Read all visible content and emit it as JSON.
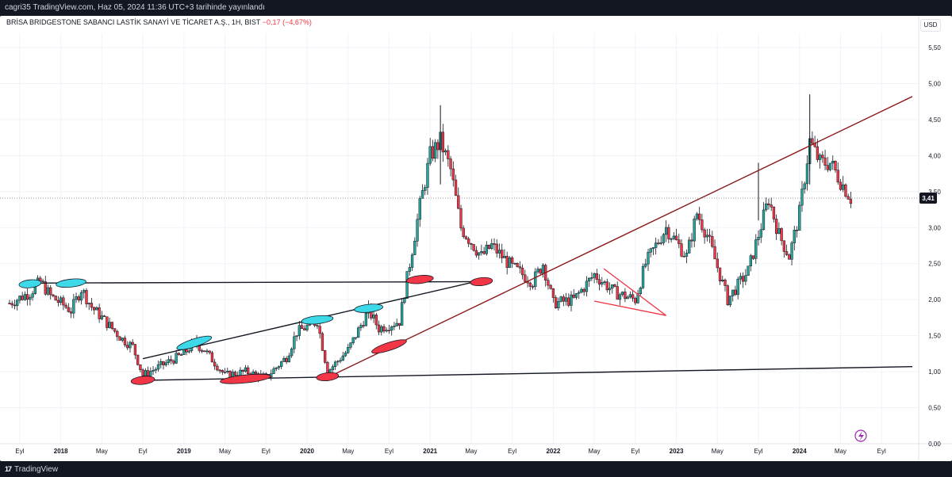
{
  "header": {
    "published": "cagri35 TradingView.com, Haz 05, 2024 11:36 UTC+3 tarihinde yayınlandı"
  },
  "legend": {
    "symbol": "BRİSA BRIDGESTONE SABANCI LASTİK SANAYİ VE TİCARET A.Ş., 1H, BIST",
    "change": "−0,17 (−4,67%)"
  },
  "currency": "USD",
  "footer": {
    "brand": "TradingView",
    "brand_mark": "17"
  },
  "chart_data": {
    "type": "candlestick",
    "title": "",
    "last_price": "3,41",
    "y_ticks": [
      {
        "v": 0.0,
        "label": "0,00"
      },
      {
        "v": 0.5,
        "label": "0,50"
      },
      {
        "v": 1.0,
        "label": "1,00"
      },
      {
        "v": 1.5,
        "label": "1,50"
      },
      {
        "v": 2.0,
        "label": "2,00"
      },
      {
        "v": 2.5,
        "label": "2,50"
      },
      {
        "v": 3.0,
        "label": "3,00"
      },
      {
        "v": 3.5,
        "label": "3,50"
      },
      {
        "v": 4.0,
        "label": "4,00"
      },
      {
        "v": 4.5,
        "label": "4,50"
      },
      {
        "v": 5.0,
        "label": "5,00"
      },
      {
        "v": 5.5,
        "label": "5,50"
      }
    ],
    "ylim": [
      0,
      5.5
    ],
    "x_ticks": [
      {
        "t": "2017-09",
        "label": "Eyl"
      },
      {
        "t": "2018-01",
        "label": "2018"
      },
      {
        "t": "2018-05",
        "label": "May"
      },
      {
        "t": "2018-09",
        "label": "Eyl"
      },
      {
        "t": "2019-01",
        "label": "2019"
      },
      {
        "t": "2019-05",
        "label": "May"
      },
      {
        "t": "2019-09",
        "label": "Eyl"
      },
      {
        "t": "2020-01",
        "label": "2020"
      },
      {
        "t": "2020-05",
        "label": "May"
      },
      {
        "t": "2020-09",
        "label": "Eyl"
      },
      {
        "t": "2021-01",
        "label": "2021"
      },
      {
        "t": "2021-05",
        "label": "May"
      },
      {
        "t": "2021-09",
        "label": "Eyl"
      },
      {
        "t": "2022-01",
        "label": "2022"
      },
      {
        "t": "2022-05",
        "label": "May"
      },
      {
        "t": "2022-09",
        "label": "Eyl"
      },
      {
        "t": "2023-01",
        "label": "2023"
      },
      {
        "t": "2023-05",
        "label": "May"
      },
      {
        "t": "2023-09",
        "label": "Eyl"
      },
      {
        "t": "2024-01",
        "label": "2024"
      },
      {
        "t": "2024-05",
        "label": "May"
      },
      {
        "t": "2024-09",
        "label": "Eyl"
      }
    ],
    "xlim": [
      "2017-08",
      "2024-12"
    ],
    "price_path": [
      [
        "2017-08",
        1.95
      ],
      [
        "2017-10",
        2.1
      ],
      [
        "2017-11",
        2.25
      ],
      [
        "2017-12",
        2.05
      ],
      [
        "2018-02",
        1.85
      ],
      [
        "2018-03",
        2.15
      ],
      [
        "2018-04",
        1.9
      ],
      [
        "2018-06",
        1.6
      ],
      [
        "2018-07",
        1.45
      ],
      [
        "2018-08",
        1.35
      ],
      [
        "2018-09",
        0.95
      ],
      [
        "2018-11",
        1.1
      ],
      [
        "2019-01",
        1.25
      ],
      [
        "2019-02",
        1.4
      ],
      [
        "2019-03",
        1.3
      ],
      [
        "2019-05",
        0.95
      ],
      [
        "2019-07",
        1.0
      ],
      [
        "2019-09",
        0.92
      ],
      [
        "2019-11",
        1.2
      ],
      [
        "2019-12",
        1.55
      ],
      [
        "2020-02",
        1.7
      ],
      [
        "2020-03",
        1.0
      ],
      [
        "2020-05",
        1.3
      ],
      [
        "2020-07",
        1.85
      ],
      [
        "2020-08",
        1.6
      ],
      [
        "2020-10",
        1.7
      ],
      [
        "2020-11",
        2.5
      ],
      [
        "2020-12",
        3.3
      ],
      [
        "2021-01",
        4.0
      ],
      [
        "2021-02",
        4.2
      ],
      [
        "2021-03",
        3.8
      ],
      [
        "2021-04",
        3.0
      ],
      [
        "2021-06",
        2.6
      ],
      [
        "2021-07",
        2.75
      ],
      [
        "2021-09",
        2.45
      ],
      [
        "2021-11",
        2.25
      ],
      [
        "2021-12",
        2.5
      ],
      [
        "2022-01",
        1.95
      ],
      [
        "2022-03",
        2.0
      ],
      [
        "2022-05",
        2.35
      ],
      [
        "2022-07",
        2.1
      ],
      [
        "2022-09",
        2.0
      ],
      [
        "2022-10",
        2.5
      ],
      [
        "2022-12",
        3.0
      ],
      [
        "2023-02",
        2.6
      ],
      [
        "2023-03",
        3.2
      ],
      [
        "2023-04",
        2.9
      ],
      [
        "2023-06",
        2.0
      ],
      [
        "2023-08",
        2.4
      ],
      [
        "2023-10",
        3.4
      ],
      [
        "2023-11",
        2.9
      ],
      [
        "2023-12",
        2.6
      ],
      [
        "2024-01",
        3.2
      ],
      [
        "2024-02",
        4.2
      ],
      [
        "2024-03",
        3.9
      ],
      [
        "2024-04",
        3.9
      ],
      [
        "2024-05",
        3.65
      ],
      [
        "2024-06",
        3.41
      ]
    ],
    "spikes": [
      {
        "t": "2021-02",
        "high": 4.7,
        "low": 3.6
      },
      {
        "t": "2023-09",
        "high": 3.9,
        "low": 3.1
      },
      {
        "t": "2024-02",
        "high": 4.85,
        "low": 3.6
      }
    ],
    "trendlines": [
      {
        "from": [
          "2017-10",
          2.23
        ],
        "to": [
          "2021-06",
          2.25
        ],
        "color": "#131722"
      },
      {
        "from": [
          "2018-09",
          0.88
        ],
        "to": [
          "2024-12",
          1.07
        ],
        "color": "#131722"
      },
      {
        "from": [
          "2018-09",
          1.18
        ],
        "to": [
          "2021-06",
          2.27
        ],
        "color": "#131722"
      },
      {
        "from": [
          "2020-03",
          0.92
        ],
        "to": [
          "2024-12",
          4.82
        ],
        "color": "#8b1a1a"
      }
    ],
    "triangle": {
      "points": [
        [
          "2022-05",
          2.43
        ],
        [
          "2022-05",
          1.98
        ],
        [
          "2022-12",
          1.78
        ]
      ],
      "color": "#f23645"
    },
    "highlights": [
      {
        "t": "2017-10",
        "v": 2.22,
        "color": "#3dd9e8",
        "w": 28
      },
      {
        "t": "2018-02",
        "v": 2.23,
        "color": "#3dd9e8",
        "w": 38
      },
      {
        "t": "2019-02",
        "v": 1.4,
        "color": "#3dd9e8",
        "w": 46
      },
      {
        "t": "2020-02",
        "v": 1.72,
        "color": "#3dd9e8",
        "w": 40
      },
      {
        "t": "2020-07",
        "v": 1.88,
        "color": "#3dd9e8",
        "w": 36
      },
      {
        "t": "2018-09",
        "v": 0.88,
        "color": "#f23645",
        "w": 30
      },
      {
        "t": "2019-07",
        "v": 0.9,
        "color": "#f23645",
        "w": 64
      },
      {
        "t": "2020-03",
        "v": 0.93,
        "color": "#f23645",
        "w": 28
      },
      {
        "t": "2020-09",
        "v": 1.35,
        "color": "#f23645",
        "w": 46
      },
      {
        "t": "2020-12",
        "v": 2.28,
        "color": "#f23645",
        "w": 34
      },
      {
        "t": "2021-06",
        "v": 2.25,
        "color": "#f23645",
        "w": 28
      }
    ],
    "colors": {
      "up": "#26a69a",
      "down": "#f23645",
      "body": "#131722"
    }
  }
}
